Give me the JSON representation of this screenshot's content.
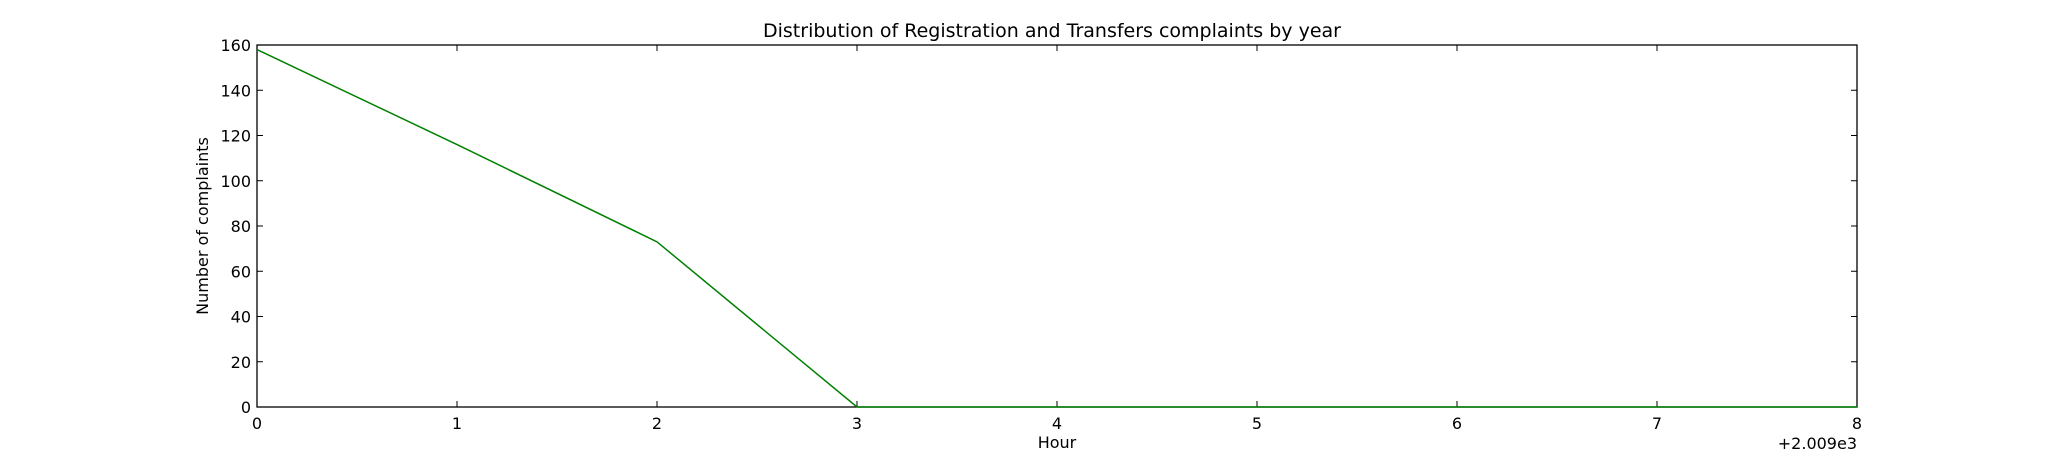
{
  "chart_data": {
    "type": "line",
    "title": "Distribution of  Registration and Transfers complaints by year",
    "xlabel": "Hour",
    "ylabel": "Number of complaints",
    "x_offset_label": "+2.009e3",
    "x": [
      0,
      1,
      2,
      3,
      4,
      5,
      6,
      7,
      8
    ],
    "series": [
      {
        "values": [
          158,
          116,
          73,
          0,
          0,
          0,
          0,
          0,
          0
        ],
        "color": "#008000"
      }
    ],
    "xlim": [
      0,
      8
    ],
    "ylim": [
      0,
      160
    ],
    "xticks": [
      "0",
      "1",
      "2",
      "3",
      "4",
      "5",
      "6",
      "7",
      "8"
    ],
    "yticks": [
      "0",
      "20",
      "40",
      "60",
      "80",
      "100",
      "120",
      "140",
      "160"
    ],
    "grid": false,
    "legend": null
  }
}
